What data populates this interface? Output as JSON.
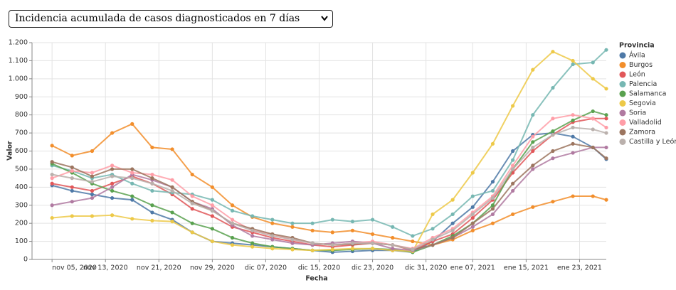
{
  "dropdown": {
    "selected": "Incidencia acumulada de casos diagnosticados en 7 días"
  },
  "chart_data": {
    "type": "line",
    "x_label": "Fecha",
    "y_label": "Valor",
    "legend_title": "Provincia",
    "legend": "right",
    "grid": true,
    "x": [
      "2020-11-05",
      "2020-11-08",
      "2020-11-11",
      "2020-11-14",
      "2020-11-17",
      "2020-11-20",
      "2020-11-23",
      "2020-11-26",
      "2020-11-29",
      "2020-12-02",
      "2020-12-05",
      "2020-12-08",
      "2020-12-11",
      "2020-12-14",
      "2020-12-17",
      "2020-12-20",
      "2020-12-23",
      "2020-12-26",
      "2020-12-29",
      "2021-01-01",
      "2021-01-04",
      "2021-01-07",
      "2021-01-10",
      "2021-01-13",
      "2021-01-16",
      "2021-01-19",
      "2021-01-22",
      "2021-01-25",
      "2021-01-27"
    ],
    "xlim": [
      "2020-11-02",
      "2021-01-27"
    ],
    "xticks": [
      {
        "value": "2020-11-05",
        "label": "nov 05, 2020"
      },
      {
        "value": "2020-11-13",
        "label": "nov 13, 2020"
      },
      {
        "value": "2020-11-21",
        "label": "nov 21, 2020"
      },
      {
        "value": "2020-11-29",
        "label": "nov 29, 2020"
      },
      {
        "value": "2020-12-07",
        "label": "dic 07, 2020"
      },
      {
        "value": "2020-12-15",
        "label": "dic 15, 2020"
      },
      {
        "value": "2020-12-23",
        "label": "dic 23, 2020"
      },
      {
        "value": "2020-12-31",
        "label": "dic 31, 2020"
      },
      {
        "value": "2021-01-07",
        "label": "ene 07, 2021"
      },
      {
        "value": "2021-01-15",
        "label": "ene 15, 2021"
      },
      {
        "value": "2021-01-23",
        "label": "ene 23, 2021"
      }
    ],
    "ylim": [
      0,
      1200
    ],
    "yticks": [
      0,
      100,
      200,
      300,
      400,
      500,
      600,
      700,
      800,
      900,
      {
        "value": 1000,
        "label": "1.000"
      },
      {
        "value": 1100,
        "label": "1.100"
      },
      {
        "value": 1200,
        "label": "1.200"
      }
    ],
    "series": [
      {
        "name": "Ávila",
        "color": "#4e79a7",
        "values": [
          410,
          380,
          360,
          340,
          330,
          260,
          220,
          150,
          100,
          90,
          80,
          70,
          60,
          50,
          40,
          45,
          50,
          50,
          40,
          100,
          200,
          290,
          430,
          600,
          690,
          700,
          680,
          620,
          555
        ]
      },
      {
        "name": "Burgos",
        "color": "#f28e2b",
        "values": [
          630,
          575,
          600,
          700,
          750,
          620,
          610,
          470,
          400,
          300,
          235,
          200,
          180,
          160,
          150,
          160,
          140,
          120,
          100,
          80,
          110,
          160,
          200,
          250,
          290,
          320,
          350,
          350,
          330
        ]
      },
      {
        "name": "León",
        "color": "#e15759",
        "values": [
          420,
          400,
          380,
          420,
          460,
          420,
          360,
          280,
          240,
          180,
          150,
          120,
          100,
          80,
          70,
          80,
          90,
          80,
          50,
          100,
          140,
          230,
          330,
          480,
          600,
          690,
          760,
          780,
          780
        ]
      },
      {
        "name": "Palencia",
        "color": "#76b7b2",
        "values": [
          520,
          490,
          450,
          470,
          420,
          380,
          370,
          360,
          330,
          270,
          240,
          220,
          200,
          200,
          220,
          210,
          220,
          180,
          130,
          170,
          250,
          350,
          380,
          550,
          800,
          950,
          1080,
          1090,
          1160
        ]
      },
      {
        "name": "Salamanca",
        "color": "#59a14f",
        "values": [
          530,
          480,
          420,
          380,
          350,
          300,
          260,
          200,
          170,
          120,
          90,
          70,
          60,
          50,
          50,
          55,
          60,
          55,
          40,
          80,
          130,
          200,
          300,
          500,
          650,
          710,
          770,
          820,
          800
        ]
      },
      {
        "name": "Segovia",
        "color": "#edc948",
        "values": [
          230,
          240,
          240,
          245,
          225,
          215,
          210,
          150,
          100,
          80,
          70,
          60,
          55,
          50,
          55,
          60,
          60,
          50,
          45,
          250,
          330,
          480,
          640,
          850,
          1050,
          1150,
          1100,
          1000,
          945
        ]
      },
      {
        "name": "Soria",
        "color": "#b07aa1",
        "values": [
          300,
          320,
          340,
          400,
          470,
          440,
          400,
          320,
          280,
          190,
          130,
          110,
          90,
          80,
          90,
          100,
          90,
          60,
          50,
          80,
          120,
          180,
          250,
          380,
          500,
          560,
          590,
          620,
          620
        ]
      },
      {
        "name": "Valladolid",
        "color": "#ff9da7",
        "values": [
          450,
          490,
          480,
          520,
          480,
          470,
          440,
          350,
          300,
          220,
          160,
          140,
          110,
          90,
          80,
          90,
          100,
          80,
          60,
          120,
          170,
          260,
          350,
          520,
          680,
          780,
          800,
          780,
          730
        ]
      },
      {
        "name": "Zamora",
        "color": "#9c755f",
        "values": [
          540,
          510,
          460,
          500,
          500,
          450,
          400,
          320,
          270,
          200,
          170,
          140,
          120,
          90,
          80,
          85,
          90,
          80,
          55,
          80,
          120,
          200,
          280,
          420,
          520,
          600,
          640,
          620,
          560
        ]
      },
      {
        "name": "Castilla y León",
        "color": "#bab0ac",
        "values": [
          470,
          450,
          430,
          460,
          450,
          420,
          380,
          310,
          270,
          200,
          160,
          130,
          110,
          90,
          80,
          90,
          90,
          80,
          55,
          110,
          160,
          250,
          340,
          500,
          620,
          690,
          730,
          720,
          700
        ]
      }
    ]
  }
}
